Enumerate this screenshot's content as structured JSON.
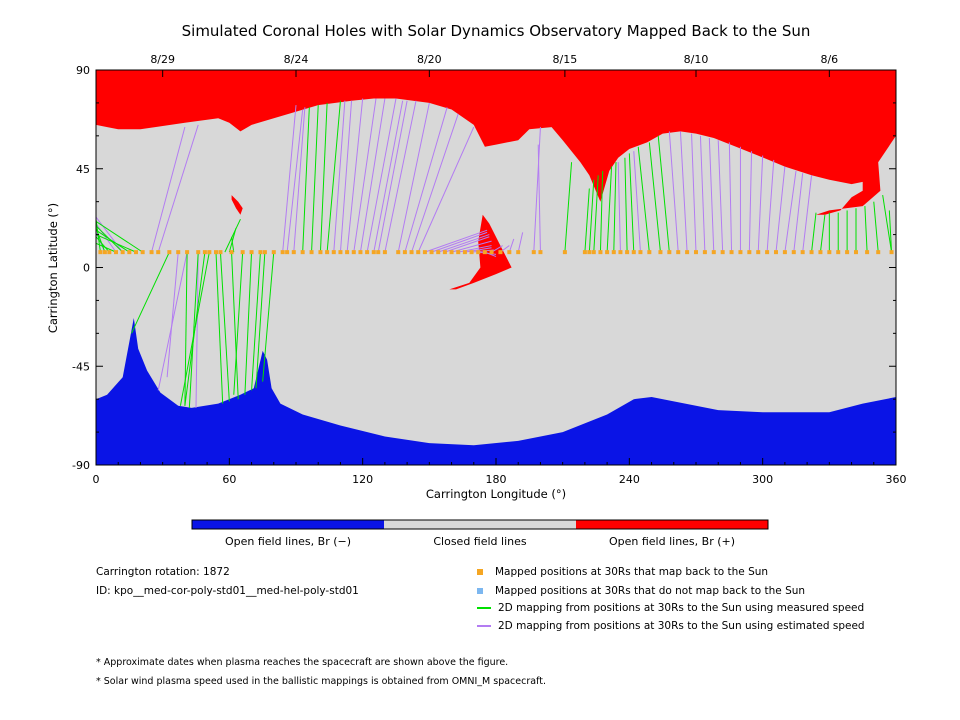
{
  "chart_data": {
    "type": "map",
    "title": "Simulated Coronal Holes with Solar Dynamics Observatory Mapped Back to the Sun",
    "xlabel": "Carrington Longitude (°)",
    "ylabel": "Carrington Latitude (°)",
    "xlim": [
      0,
      360
    ],
    "ylim": [
      -90,
      90
    ],
    "x_ticks": [
      "0",
      "60",
      "120",
      "180",
      "240",
      "300",
      "360"
    ],
    "y_ticks": [
      "90",
      "45",
      "0",
      "-45",
      "-90"
    ],
    "top_axis": {
      "dates": [
        {
          "label": "8/29",
          "lon": 30
        },
        {
          "label": "8/24",
          "lon": 90
        },
        {
          "label": "8/20",
          "lon": 150
        },
        {
          "label": "8/15",
          "lon": 211
        },
        {
          "label": "8/10",
          "lon": 270
        },
        {
          "label": "8/6",
          "lon": 330
        }
      ]
    },
    "colorbar": [
      {
        "label": "Open field lines, Br (−)",
        "color": "#0a14e6"
      },
      {
        "label": "Closed field lines",
        "color": "#d8d8d8"
      },
      {
        "label": "Open field lines, Br (+)",
        "color": "#ff0000"
      }
    ],
    "regions": {
      "north_positive_hole": [
        [
          0,
          65
        ],
        [
          10,
          63
        ],
        [
          20,
          63
        ],
        [
          40,
          66
        ],
        [
          55,
          68
        ],
        [
          60,
          66
        ],
        [
          65,
          62
        ],
        [
          70,
          65
        ],
        [
          80,
          68
        ],
        [
          100,
          74
        ],
        [
          115,
          76
        ],
        [
          125,
          77
        ],
        [
          135,
          77
        ],
        [
          150,
          75
        ],
        [
          160,
          72
        ],
        [
          170,
          65
        ],
        [
          175,
          55
        ],
        [
          180,
          56
        ],
        [
          190,
          58
        ],
        [
          195,
          63
        ],
        [
          205,
          64
        ],
        [
          210,
          58
        ],
        [
          218,
          48
        ],
        [
          222,
          42
        ],
        [
          227,
          30
        ],
        [
          231,
          44
        ],
        [
          235,
          50
        ],
        [
          240,
          54
        ],
        [
          248,
          57
        ],
        [
          255,
          61
        ],
        [
          263,
          62
        ],
        [
          270,
          61
        ],
        [
          278,
          59
        ],
        [
          288,
          55
        ],
        [
          298,
          51
        ],
        [
          310,
          46
        ],
        [
          322,
          42
        ],
        [
          330,
          40
        ],
        [
          340,
          38
        ],
        [
          345,
          39
        ],
        [
          345,
          35
        ],
        [
          340,
          32
        ],
        [
          335,
          26
        ],
        [
          328,
          24
        ],
        [
          324,
          24
        ],
        [
          330,
          26
        ],
        [
          345,
          28
        ],
        [
          353,
          35
        ],
        [
          352,
          48
        ],
        [
          360,
          60
        ],
        [
          360,
          90
        ],
        [
          0,
          90
        ]
      ],
      "mid_positive_hole": [
        [
          159,
          -10
        ],
        [
          168,
          -7
        ],
        [
          173,
          0
        ],
        [
          172,
          12
        ],
        [
          174,
          24
        ],
        [
          177,
          20
        ],
        [
          182,
          10
        ],
        [
          187,
          0
        ],
        [
          180,
          -3
        ],
        [
          170,
          -7
        ],
        [
          162,
          -10
        ]
      ],
      "small_positive_hole": [
        [
          61,
          33
        ],
        [
          64,
          30
        ],
        [
          66,
          27
        ],
        [
          65,
          24
        ],
        [
          63,
          27
        ],
        [
          61,
          31
        ]
      ],
      "south_negative_hole": [
        [
          0,
          -60
        ],
        [
          5,
          -58
        ],
        [
          12,
          -50
        ],
        [
          15,
          -34
        ],
        [
          17,
          -23
        ],
        [
          19,
          -37
        ],
        [
          23,
          -47
        ],
        [
          29,
          -57
        ],
        [
          37,
          -63
        ],
        [
          43,
          -64
        ],
        [
          55,
          -62
        ],
        [
          65,
          -58
        ],
        [
          71,
          -55
        ],
        [
          75,
          -38
        ],
        [
          77,
          -42
        ],
        [
          79,
          -55
        ],
        [
          83,
          -62
        ],
        [
          93,
          -67
        ],
        [
          110,
          -72
        ],
        [
          130,
          -77
        ],
        [
          150,
          -80
        ],
        [
          170,
          -81
        ],
        [
          190,
          -79
        ],
        [
          210,
          -75
        ],
        [
          230,
          -67
        ],
        [
          242,
          -60
        ],
        [
          250,
          -59
        ],
        [
          260,
          -61
        ],
        [
          280,
          -65
        ],
        [
          300,
          -66
        ],
        [
          330,
          -66
        ],
        [
          345,
          -62
        ],
        [
          360,
          -59
        ],
        [
          360,
          -90
        ],
        [
          0,
          -90
        ]
      ]
    },
    "mapped_points": {
      "lat": 7,
      "lons": [
        2,
        4,
        6,
        9,
        12,
        15,
        18,
        21,
        25,
        28,
        33,
        37,
        41,
        46,
        49,
        51,
        54,
        56,
        61,
        66,
        70,
        74,
        76,
        80,
        84,
        86,
        89,
        93,
        97,
        101,
        104,
        107,
        110,
        113,
        116,
        119,
        122,
        125,
        127,
        130,
        136,
        139,
        142,
        145,
        148,
        151,
        154,
        157,
        160,
        163,
        166,
        169,
        172,
        175,
        178,
        182,
        186,
        190,
        197,
        200,
        211,
        220,
        222,
        224,
        227,
        230,
        233,
        236,
        239,
        242,
        245,
        249,
        254,
        258,
        262,
        266,
        270,
        274,
        278,
        282,
        286,
        290,
        294,
        298,
        302,
        306,
        310,
        314,
        318,
        322,
        326,
        330,
        334,
        338,
        342,
        347,
        352,
        358
      ]
    },
    "mappings_measured": [
      [
        2,
        7,
        0,
        22
      ],
      [
        4,
        7,
        0,
        18
      ],
      [
        6,
        7,
        0,
        14
      ],
      [
        9,
        7,
        0,
        11
      ],
      [
        12,
        7,
        0,
        19
      ],
      [
        15,
        7,
        0,
        17
      ],
      [
        18,
        7,
        0,
        15
      ],
      [
        21,
        7,
        0,
        21
      ],
      [
        33,
        7,
        16,
        -30
      ],
      [
        41,
        7,
        40,
        -63
      ],
      [
        46,
        7,
        42,
        -64
      ],
      [
        49,
        7,
        40,
        -63
      ],
      [
        51,
        7,
        38,
        -63
      ],
      [
        54,
        7,
        57,
        -62
      ],
      [
        56,
        7,
        60,
        -61
      ],
      [
        61,
        7,
        64,
        -60
      ],
      [
        66,
        7,
        62,
        -58
      ],
      [
        70,
        7,
        67,
        -58
      ],
      [
        74,
        7,
        70,
        -56
      ],
      [
        76,
        7,
        72,
        -55
      ],
      [
        80,
        7,
        75,
        -52
      ],
      [
        58,
        7,
        65,
        22
      ],
      [
        60,
        7,
        63,
        18
      ],
      [
        62,
        7,
        61,
        14
      ],
      [
        93,
        7,
        96,
        73
      ],
      [
        97,
        7,
        100,
        74
      ],
      [
        101,
        7,
        104,
        75
      ],
      [
        104,
        7,
        110,
        76
      ],
      [
        211,
        7,
        214,
        48
      ],
      [
        220,
        7,
        222,
        36
      ],
      [
        222,
        7,
        224,
        40
      ],
      [
        224,
        7,
        226,
        42
      ],
      [
        227,
        7,
        228,
        44
      ],
      [
        230,
        7,
        232,
        46
      ],
      [
        233,
        7,
        234,
        48
      ],
      [
        239,
        7,
        238,
        50
      ],
      [
        242,
        7,
        240,
        52
      ],
      [
        249,
        7,
        244,
        55
      ],
      [
        254,
        7,
        249,
        57
      ],
      [
        258,
        7,
        253,
        60
      ],
      [
        322,
        7,
        324,
        25
      ],
      [
        326,
        7,
        328,
        24
      ],
      [
        330,
        7,
        330,
        25
      ],
      [
        334,
        7,
        334,
        25
      ],
      [
        338,
        7,
        338,
        26
      ],
      [
        342,
        7,
        342,
        27
      ],
      [
        347,
        7,
        346,
        28
      ],
      [
        352,
        7,
        350,
        30
      ],
      [
        358,
        7,
        354,
        33
      ],
      [
        358,
        7,
        357,
        26
      ]
    ],
    "mappings_estimated": [
      [
        4,
        7,
        0,
        16
      ],
      [
        9,
        7,
        0,
        20
      ],
      [
        12,
        7,
        0,
        23
      ],
      [
        25,
        7,
        40,
        64
      ],
      [
        28,
        7,
        46,
        65
      ],
      [
        37,
        7,
        32,
        -50
      ],
      [
        41,
        7,
        28,
        -56
      ],
      [
        46,
        7,
        45,
        -64
      ],
      [
        84,
        7,
        90,
        74
      ],
      [
        86,
        7,
        93,
        72
      ],
      [
        89,
        7,
        94,
        73
      ],
      [
        107,
        7,
        112,
        76
      ],
      [
        110,
        7,
        115,
        76
      ],
      [
        113,
        7,
        120,
        77
      ],
      [
        116,
        7,
        126,
        77
      ],
      [
        119,
        7,
        130,
        77
      ],
      [
        122,
        7,
        135,
        77
      ],
      [
        125,
        7,
        138,
        76
      ],
      [
        127,
        7,
        140,
        76
      ],
      [
        130,
        7,
        144,
        76
      ],
      [
        136,
        7,
        150,
        75
      ],
      [
        139,
        7,
        158,
        73
      ],
      [
        142,
        7,
        163,
        70
      ],
      [
        145,
        7,
        170,
        64
      ],
      [
        148,
        7,
        176,
        17
      ],
      [
        151,
        7,
        176,
        16
      ],
      [
        154,
        7,
        177,
        15
      ],
      [
        157,
        7,
        177,
        14
      ],
      [
        160,
        7,
        178,
        12
      ],
      [
        163,
        7,
        178,
        10
      ],
      [
        166,
        7,
        178,
        9
      ],
      [
        169,
        7,
        179,
        8
      ],
      [
        172,
        7,
        180,
        6
      ],
      [
        175,
        7,
        180,
        5
      ],
      [
        178,
        7,
        183,
        10
      ],
      [
        182,
        7,
        186,
        10
      ],
      [
        186,
        7,
        188,
        13
      ],
      [
        190,
        7,
        192,
        16
      ],
      [
        197,
        7,
        200,
        64
      ],
      [
        200,
        7,
        199,
        56
      ],
      [
        236,
        7,
        235,
        48
      ],
      [
        245,
        7,
        242,
        53
      ],
      [
        262,
        7,
        258,
        62
      ],
      [
        266,
        7,
        263,
        62
      ],
      [
        270,
        7,
        268,
        61
      ],
      [
        274,
        7,
        272,
        60
      ],
      [
        278,
        7,
        276,
        59
      ],
      [
        282,
        7,
        280,
        58
      ],
      [
        286,
        7,
        285,
        57
      ],
      [
        290,
        7,
        290,
        55
      ],
      [
        294,
        7,
        295,
        53
      ],
      [
        298,
        7,
        300,
        51
      ],
      [
        302,
        7,
        305,
        49
      ],
      [
        306,
        7,
        310,
        46
      ],
      [
        310,
        7,
        315,
        44
      ],
      [
        314,
        7,
        318,
        43
      ],
      [
        318,
        7,
        322,
        42
      ]
    ]
  },
  "info": {
    "rotation": "Carrington rotation: 1872",
    "id": "ID: kpo__med-cor-poly-std01__med-hel-poly-std01"
  },
  "legend": [
    {
      "label": "Mapped positions at 30Rs that map back to the Sun",
      "kind": "square",
      "color": "#f5a623"
    },
    {
      "label": "Mapped positions at 30Rs that do not map back to the Sun",
      "kind": "square",
      "color": "#7cb7f0"
    },
    {
      "label": "2D mapping from positions at 30Rs to the Sun using measured speed",
      "kind": "line",
      "color": "#00e000"
    },
    {
      "label": "2D mapping from positions at 30Rs to the Sun using estimated speed",
      "kind": "line",
      "color": "#b37cf2"
    }
  ],
  "notes": [
    "* Approximate dates when plasma reaches the spacecraft are shown above the figure.",
    "* Solar wind plasma speed used in the ballistic mappings is obtained from OMNI_M spacecraft."
  ],
  "colors": {
    "closed": "#d8d8d8",
    "positive": "#ff0000",
    "negative": "#0a14e6",
    "mapped": "#f5a623",
    "measured": "#00e000",
    "estimated": "#b37cf2"
  }
}
